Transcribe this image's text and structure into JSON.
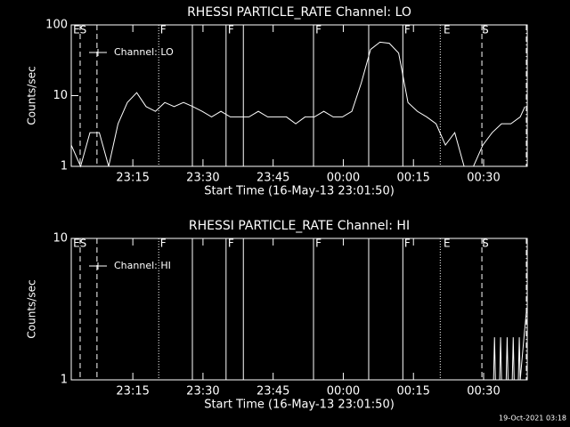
{
  "chart_data": [
    {
      "type": "line",
      "title": "RHESSI PARTICLE_RATE Channel: LO",
      "xlabel": "Start Time (16-May-13 23:01:50)",
      "ylabel": "Counts/sec",
      "log_y": true,
      "ylim": [
        1,
        100
      ],
      "yticks": [
        1,
        10,
        100
      ],
      "xlim": [
        0,
        97.5
      ],
      "xticks": [
        {
          "value": 13.167,
          "label": "23:15"
        },
        {
          "value": 28.167,
          "label": "23:30"
        },
        {
          "value": 43.167,
          "label": "23:45"
        },
        {
          "value": 58.167,
          "label": "00:00"
        },
        {
          "value": 73.167,
          "label": "00:15"
        },
        {
          "value": 88.167,
          "label": "00:30"
        }
      ],
      "legend": "upper left",
      "series": [
        {
          "name": "Channel: LO",
          "color": "#ffffff",
          "x": [
            0,
            2,
            4,
            6,
            8,
            10,
            12,
            14,
            16,
            18,
            20,
            22,
            24,
            26,
            28,
            30,
            32,
            34,
            36,
            38,
            40,
            42,
            44,
            46,
            48,
            50,
            52,
            54,
            56,
            58,
            60,
            62,
            64,
            66,
            68,
            70,
            72,
            74,
            76,
            78,
            80,
            82,
            84,
            86,
            88,
            90,
            92,
            94,
            96,
            97
          ],
          "values": [
            2,
            1,
            3,
            3,
            1,
            4,
            8,
            11,
            7,
            6,
            8,
            7,
            8,
            7,
            6,
            5,
            6,
            5,
            5,
            5,
            6,
            5,
            5,
            5,
            4,
            5,
            5,
            6,
            5,
            5,
            6,
            15,
            45,
            57,
            55,
            40,
            8,
            6,
            5,
            4,
            2,
            3,
            1,
            1,
            2,
            3,
            4,
            4,
            5,
            7
          ]
        }
      ],
      "event_lines": [
        {
          "x": 1.9,
          "style": "dashed"
        },
        {
          "x": 5.5,
          "style": "dashed"
        },
        {
          "x": 18.7,
          "style": "dotted"
        },
        {
          "x": 25.9,
          "style": "solid"
        },
        {
          "x": 33.1,
          "style": "solid"
        },
        {
          "x": 36.8,
          "style": "solid"
        },
        {
          "x": 51.8,
          "style": "solid"
        },
        {
          "x": 63.6,
          "style": "solid"
        },
        {
          "x": 70.9,
          "style": "solid"
        },
        {
          "x": 78.9,
          "style": "dotted"
        },
        {
          "x": 87.8,
          "style": "dashed"
        },
        {
          "x": 97.3,
          "style": "dashdot"
        }
      ],
      "event_labels": [
        {
          "x": 0.4,
          "text": "ES"
        },
        {
          "x": 19.0,
          "text": "F"
        },
        {
          "x": 33.5,
          "text": "F"
        },
        {
          "x": 52.2,
          "text": "F"
        },
        {
          "x": 71.2,
          "text": "F"
        },
        {
          "x": 79.6,
          "text": "E"
        },
        {
          "x": 87.8,
          "text": "S"
        }
      ]
    },
    {
      "type": "line",
      "title": "RHESSI PARTICLE_RATE Channel: HI",
      "xlabel": "Start Time (16-May-13 23:01:50)",
      "ylabel": "Counts/sec",
      "log_y": true,
      "ylim": [
        1,
        10
      ],
      "yticks": [
        1,
        10
      ],
      "xlim": [
        0,
        97.5
      ],
      "xticks": [
        {
          "value": 13.167,
          "label": "23:15"
        },
        {
          "value": 28.167,
          "label": "23:30"
        },
        {
          "value": 43.167,
          "label": "23:45"
        },
        {
          "value": 58.167,
          "label": "00:00"
        },
        {
          "value": 73.167,
          "label": "00:15"
        },
        {
          "value": 88.167,
          "label": "00:30"
        }
      ],
      "legend": "upper left",
      "series": [
        {
          "name": "Channel: HI",
          "color": "#ffffff",
          "x": [
            89,
            90.3,
            90.5,
            90.7,
            91.6,
            91.8,
            92.0,
            93.0,
            93.2,
            93.4,
            94.3,
            94.5,
            94.7,
            95.6,
            95.8,
            96.0,
            96.8,
            97.3
          ],
          "values": [
            1,
            1,
            2,
            1,
            1,
            2,
            1,
            1,
            2,
            1,
            1,
            2,
            1,
            1,
            2,
            1,
            2,
            3
          ]
        }
      ],
      "event_lines": [
        {
          "x": 1.9,
          "style": "dashed"
        },
        {
          "x": 5.5,
          "style": "dashed"
        },
        {
          "x": 18.7,
          "style": "dotted"
        },
        {
          "x": 25.9,
          "style": "solid"
        },
        {
          "x": 33.1,
          "style": "solid"
        },
        {
          "x": 36.8,
          "style": "solid"
        },
        {
          "x": 51.8,
          "style": "solid"
        },
        {
          "x": 63.6,
          "style": "solid"
        },
        {
          "x": 70.9,
          "style": "solid"
        },
        {
          "x": 78.9,
          "style": "dotted"
        },
        {
          "x": 87.8,
          "style": "dashed"
        },
        {
          "x": 97.3,
          "style": "dashdot"
        }
      ],
      "event_labels": [
        {
          "x": 0.4,
          "text": "ES"
        },
        {
          "x": 19.0,
          "text": "F"
        },
        {
          "x": 33.5,
          "text": "F"
        },
        {
          "x": 52.2,
          "text": "F"
        },
        {
          "x": 71.2,
          "text": "F"
        },
        {
          "x": 79.6,
          "text": "E"
        },
        {
          "x": 87.8,
          "text": "S"
        }
      ]
    }
  ],
  "footer": "19-Oct-2021 03:18"
}
